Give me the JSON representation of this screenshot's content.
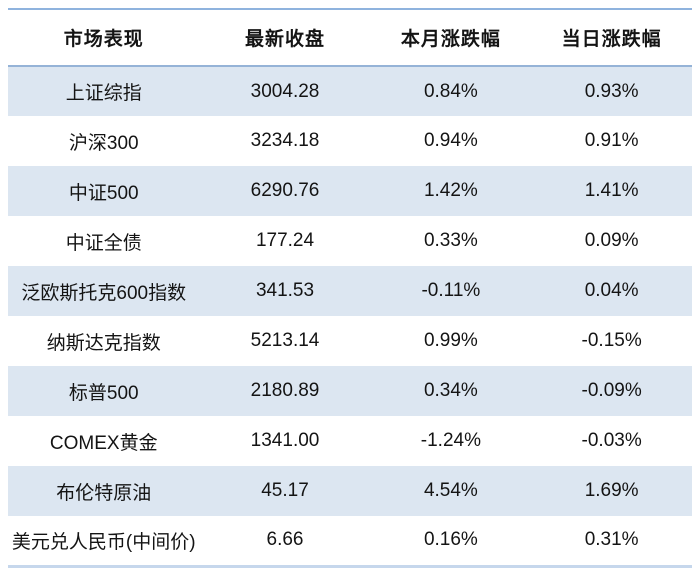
{
  "table": {
    "title": "market-performance-table",
    "columns": [
      "市场表现",
      "最新收盘",
      "本月涨跌幅",
      "当日涨跌幅"
    ],
    "rows": [
      [
        "上证综指",
        "3004.28",
        "0.84%",
        "0.93%"
      ],
      [
        "沪深300",
        "3234.18",
        "0.94%",
        "0.91%"
      ],
      [
        "中证500",
        "6290.76",
        "1.42%",
        "1.41%"
      ],
      [
        "中证全债",
        "177.24",
        "0.33%",
        "0.09%"
      ],
      [
        "泛欧斯托克600指数",
        "341.53",
        "-0.11%",
        "0.04%"
      ],
      [
        "纳斯达克指数",
        "5213.14",
        "0.99%",
        "-0.15%"
      ],
      [
        "标普500",
        "2180.89",
        "0.34%",
        "-0.09%"
      ],
      [
        "COMEX黄金",
        "1341.00",
        "-1.24%",
        "-0.03%"
      ],
      [
        "布伦特原油",
        "45.17",
        "4.54%",
        "1.69%"
      ],
      [
        "美元兑人民币(中间价)",
        "6.66",
        "0.16%",
        "0.31%"
      ]
    ]
  },
  "colors": {
    "top_border": "#8fb3de",
    "header_border": "#95b3d7",
    "bottom_border": "#c6d7ec",
    "stripe_bg": "#dce6f1",
    "plain_bg": "#ffffff",
    "text_color": "#141414"
  }
}
